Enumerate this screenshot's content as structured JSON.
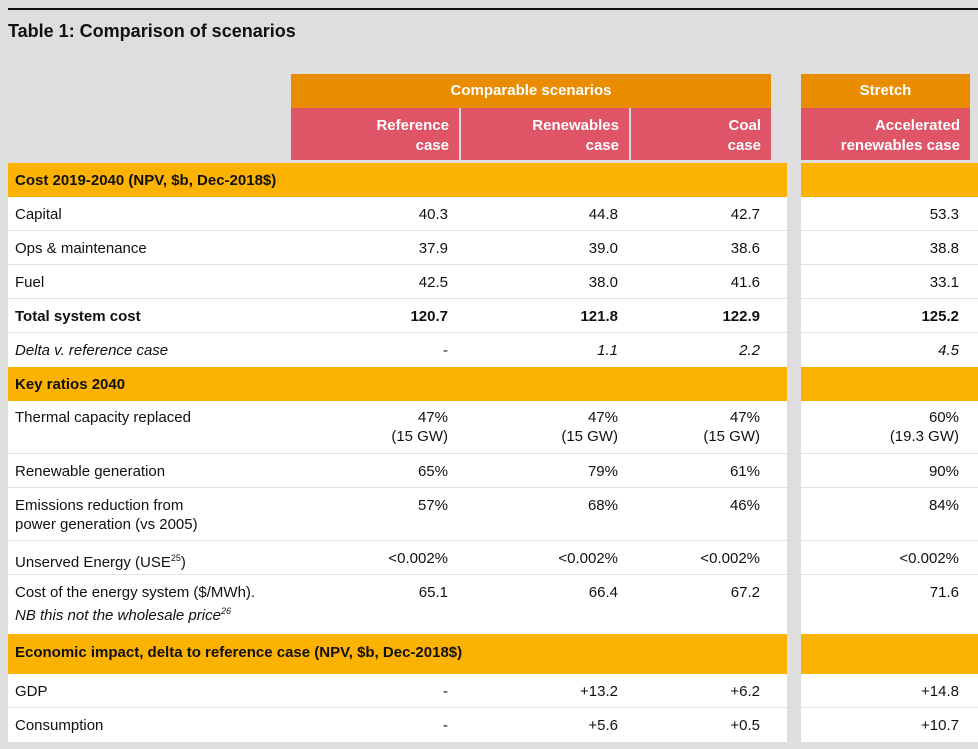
{
  "title": "Table 1: Comparison of scenarios",
  "groups": {
    "comparable": "Comparable scenarios",
    "stretch": "Stretch"
  },
  "columns": {
    "reference": [
      "Reference",
      "case"
    ],
    "renewables": [
      "Renewables",
      "case"
    ],
    "coal": [
      "Coal",
      "case"
    ],
    "accelerated": [
      "Accelerated",
      "renewables case"
    ]
  },
  "sections": {
    "cost": "Cost 2019-2040 (NPV, $b, Dec-2018$)",
    "ratios": "Key ratios 2040",
    "economic": "Economic impact, delta to reference case (NPV, $b, Dec-2018$)"
  },
  "rows": {
    "capital": {
      "label": "Capital",
      "values": [
        "40.3",
        "44.8",
        "42.7",
        "53.3"
      ]
    },
    "ops": {
      "label": "Ops & maintenance",
      "values": [
        "37.9",
        "39.0",
        "38.6",
        "38.8"
      ]
    },
    "fuel": {
      "label": "Fuel",
      "values": [
        "42.5",
        "38.0",
        "41.6",
        "33.1"
      ]
    },
    "total": {
      "label": "Total system cost",
      "values": [
        "120.7",
        "121.8",
        "122.9",
        "125.2"
      ]
    },
    "delta": {
      "label": "Delta v. reference case",
      "values": [
        "-",
        "1.1",
        "2.2",
        "4.5"
      ]
    },
    "thermal": {
      "label": "Thermal capacity replaced",
      "values": [
        "47%",
        "47%",
        "47%",
        "60%"
      ],
      "sub": [
        "(15 GW)",
        "(15 GW)",
        "(15 GW)",
        "(19.3 GW)"
      ]
    },
    "renewable": {
      "label": "Renewable generation",
      "values": [
        "65%",
        "79%",
        "61%",
        "90%"
      ]
    },
    "emissions": {
      "label": [
        "Emissions reduction from",
        "power generation (vs 2005)"
      ],
      "values": [
        "57%",
        "68%",
        "46%",
        "84%"
      ]
    },
    "unserved": {
      "label": "Unserved Energy (USE",
      "footnote": "25",
      "label_end": ")",
      "values": [
        "<0.002%",
        "<0.002%",
        "<0.002%",
        "<0.002%"
      ]
    },
    "costenergy": {
      "label": "Cost of the energy system ($/MWh).",
      "note": "NB this not the wholesale price",
      "note_footnote": "26",
      "values": [
        "65.1",
        "66.4",
        "67.2",
        "71.6"
      ]
    },
    "gdp": {
      "label": "GDP",
      "values": [
        "-",
        "+13.2",
        "+6.2",
        "+14.8"
      ]
    },
    "consumption": {
      "label": "Consumption",
      "values": [
        "-",
        "+5.6",
        "+0.5",
        "+10.7"
      ]
    }
  }
}
